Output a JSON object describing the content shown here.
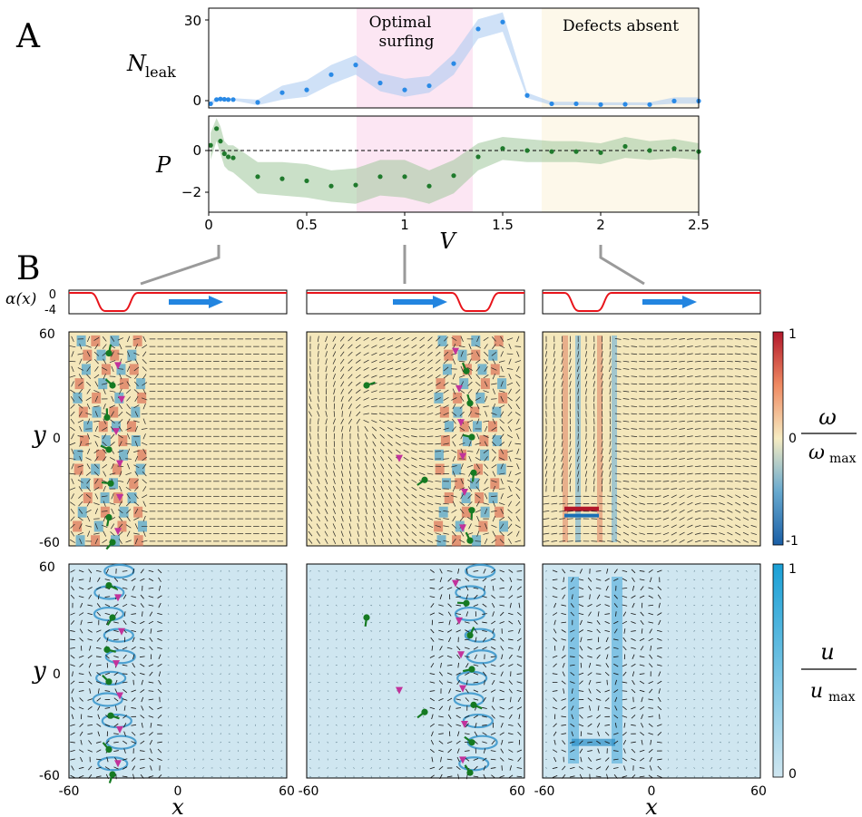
{
  "panels": {
    "a_label": "A",
    "b_label": "B"
  },
  "chart_data": [
    {
      "type": "scatter",
      "ylabel": "N_leak",
      "xlim": [
        0,
        2.5
      ],
      "ylim": [
        -1,
        35
      ],
      "yticks": [
        0,
        30
      ],
      "annotations": [
        "Optimal surfing",
        "Defects absent"
      ],
      "band_optimal": [
        0.75,
        1.35
      ],
      "band_defects": [
        1.7,
        2.5
      ],
      "x": [
        0.01,
        0.04,
        0.06,
        0.08,
        0.1,
        0.125,
        0.25,
        0.375,
        0.5,
        0.625,
        0.75,
        0.875,
        1.0,
        1.125,
        1.25,
        1.375,
        1.5,
        1.625,
        1.75,
        1.875,
        2.0,
        2.125,
        2.25,
        2.375,
        2.5
      ],
      "y": [
        0.5,
        2,
        2.2,
        2.1,
        2,
        2,
        1,
        4.5,
        5.5,
        11,
        14.5,
        8,
        5.5,
        7,
        15,
        27.5,
        30,
        3.5,
        0.5,
        0.5,
        0.2,
        0.3,
        0.2,
        1.5,
        1.5
      ],
      "band_low": [
        0,
        1.5,
        1.8,
        1.8,
        1.7,
        1.7,
        0,
        2,
        3,
        7.5,
        11,
        5,
        3,
        4.5,
        11,
        24,
        26.5,
        2.5,
        0,
        0,
        0,
        0,
        0,
        0.5,
        0.5
      ],
      "band_high": [
        1.2,
        2.8,
        2.8,
        2.6,
        2.5,
        2.5,
        2,
        7,
        9,
        14.5,
        18,
        11.5,
        9.5,
        10.5,
        18.5,
        31,
        33.5,
        4.5,
        1.2,
        1.2,
        1,
        1,
        1,
        2.8,
        2.8
      ]
    },
    {
      "type": "scatter",
      "xlabel": "V",
      "ylabel": "P",
      "xlim": [
        0,
        2.5
      ],
      "ylim": [
        -3,
        1.6
      ],
      "xticks": [
        0,
        0.5,
        1,
        1.5,
        2,
        2.5
      ],
      "yticks": [
        -2,
        0
      ],
      "x": [
        0.01,
        0.04,
        0.06,
        0.08,
        0.1,
        0.125,
        0.25,
        0.375,
        0.5,
        0.625,
        0.75,
        0.875,
        1.0,
        1.125,
        1.25,
        1.375,
        1.5,
        1.625,
        1.75,
        1.875,
        2.0,
        2.125,
        2.25,
        2.375,
        2.5
      ],
      "y": [
        0.2,
        1.0,
        0.4,
        -0.2,
        -0.35,
        -0.4,
        -1.3,
        -1.4,
        -1.5,
        -1.75,
        -1.7,
        -1.3,
        -1.3,
        -1.75,
        -1.25,
        -0.35,
        0.05,
        -0.05,
        -0.1,
        -0.1,
        -0.15,
        0.15,
        -0.05,
        0.05,
        -0.1
      ],
      "band_low": [
        -0.5,
        0.4,
        -0.2,
        -0.8,
        -1.0,
        -1.1,
        -2.1,
        -2.2,
        -2.3,
        -2.5,
        -2.6,
        -2.2,
        -2.3,
        -2.6,
        -2.1,
        -1.0,
        -0.5,
        -0.6,
        -0.6,
        -0.6,
        -0.7,
        -0.4,
        -0.5,
        -0.4,
        -0.5
      ],
      "band_high": [
        0.8,
        1.5,
        1.1,
        0.4,
        0.2,
        0.2,
        -0.6,
        -0.6,
        -0.7,
        -1.0,
        -0.9,
        -0.5,
        -0.5,
        -1.0,
        -0.5,
        0.3,
        0.6,
        0.5,
        0.4,
        0.4,
        0.3,
        0.6,
        0.4,
        0.5,
        0.3
      ]
    }
  ],
  "alpha_label": "α(x)",
  "alpha_ticks": [
    "0",
    "-4"
  ],
  "colorbars": [
    {
      "name": "vorticity",
      "label_num": "ω",
      "label_den": "ω_max",
      "ticks": [
        "1",
        "0",
        "-1"
      ]
    },
    {
      "name": "velocity",
      "label_num": "u",
      "label_den": "u_max",
      "ticks": [
        "1",
        "0"
      ]
    }
  ],
  "field_axes": {
    "ylabel": "y",
    "y_ticks": [
      "60",
      "0",
      "-60"
    ],
    "xlabel": "x",
    "x_ticks": [
      "-60",
      "0",
      "60"
    ]
  },
  "columns": [
    {
      "V": 0.05,
      "well_center": -35,
      "defects": [
        [
          -38,
          48
        ],
        [
          -33,
          41
        ],
        [
          -36,
          30
        ],
        [
          -31,
          22
        ],
        [
          -39,
          12
        ],
        [
          -34,
          4
        ],
        [
          -38,
          -6
        ],
        [
          -32,
          -14
        ],
        [
          -37,
          -25
        ],
        [
          -32,
          -33
        ],
        [
          -38,
          -44
        ],
        [
          -33,
          -52
        ],
        [
          -36,
          -58
        ]
      ]
    },
    {
      "V": 1.0,
      "well_center": 33,
      "defects": [
        [
          -27,
          30
        ],
        [
          -9,
          -11
        ],
        [
          5,
          -23
        ],
        [
          22,
          49
        ],
        [
          28,
          38
        ],
        [
          24,
          28
        ],
        [
          30,
          20
        ],
        [
          25,
          9
        ],
        [
          31,
          1
        ],
        [
          26,
          -10
        ],
        [
          32,
          -19
        ],
        [
          27,
          -30
        ],
        [
          31,
          -40
        ],
        [
          26,
          -50
        ],
        [
          30,
          -57
        ]
      ]
    },
    {
      "V": 2.0,
      "well_center": -35,
      "defects": []
    }
  ]
}
